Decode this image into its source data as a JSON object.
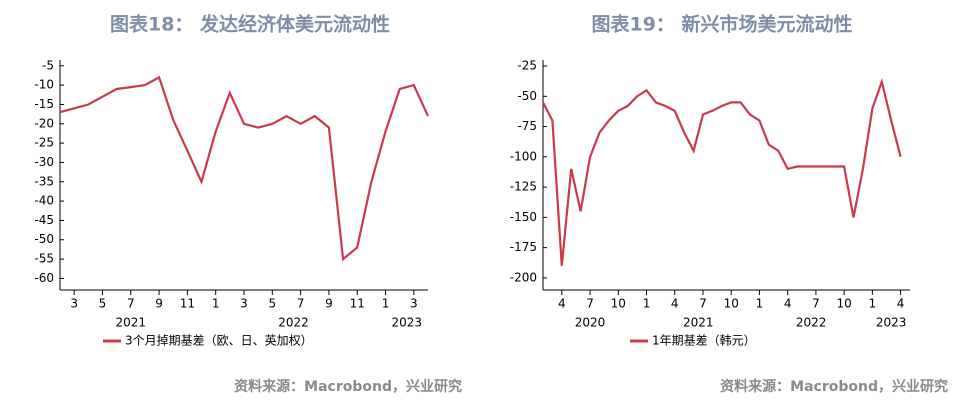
{
  "chart_data": [
    {
      "type": "line",
      "title": "图表18： 发达经济体美元流动性",
      "x": [
        "2021-02",
        "2021-03",
        "2021-04",
        "2021-05",
        "2021-06",
        "2021-07",
        "2021-08",
        "2021-09",
        "2021-10",
        "2021-11",
        "2021-12",
        "2022-01",
        "2022-02",
        "2022-03",
        "2022-04",
        "2022-05",
        "2022-06",
        "2022-07",
        "2022-08",
        "2022-09",
        "2022-10",
        "2022-11",
        "2022-12",
        "2023-01",
        "2023-02",
        "2023-03",
        "2023-04"
      ],
      "series": [
        {
          "name": "3个月掉期基差（欧、日、英加权）",
          "color": "#c93a4b",
          "values": [
            -17,
            -16,
            -15,
            -13,
            -11,
            -10.5,
            -10,
            -8,
            -19,
            -27,
            -35,
            -22,
            -12,
            -20,
            -21,
            -20,
            -18,
            -20,
            -18,
            -21,
            -55,
            -52,
            -35,
            -22,
            -11,
            -10,
            -18
          ]
        }
      ],
      "xlim": [
        "2021-02",
        "2023-04"
      ],
      "xticks": [
        {
          "value": "2021-03",
          "label": "3"
        },
        {
          "value": "2021-05",
          "label": "5"
        },
        {
          "value": "2021-07",
          "label": "7"
        },
        {
          "value": "2021-09",
          "label": "9"
        },
        {
          "value": "2021-11",
          "label": "11"
        },
        {
          "value": "2022-01",
          "label": "1"
        },
        {
          "value": "2022-03",
          "label": "3"
        },
        {
          "value": "2022-05",
          "label": "5"
        },
        {
          "value": "2022-07",
          "label": "7"
        },
        {
          "value": "2022-09",
          "label": "9"
        },
        {
          "value": "2022-11",
          "label": "11"
        },
        {
          "value": "2023-01",
          "label": "1"
        },
        {
          "value": "2023-03",
          "label": "3"
        }
      ],
      "year_labels": [
        "2021",
        "2022",
        "2023"
      ],
      "ylim": [
        -63,
        -3.5
      ],
      "yticks": [
        -5,
        -10,
        -15,
        -20,
        -25,
        -30,
        -35,
        -40,
        -45,
        -50,
        -55,
        -60
      ],
      "grid": false,
      "source": "资料来源：Macrobond，兴业研究"
    },
    {
      "type": "line",
      "title": "图表19： 新兴市场美元流动性",
      "x": [
        "2020-02",
        "2020-03",
        "2020-04",
        "2020-05",
        "2020-06",
        "2020-07",
        "2020-08",
        "2020-09",
        "2020-10",
        "2020-11",
        "2020-12",
        "2021-01",
        "2021-02",
        "2021-03",
        "2021-04",
        "2021-05",
        "2021-06",
        "2021-07",
        "2021-08",
        "2021-09",
        "2021-10",
        "2021-11",
        "2021-12",
        "2022-01",
        "2022-02",
        "2022-03",
        "2022-04",
        "2022-05",
        "2022-06",
        "2022-07",
        "2022-08",
        "2022-09",
        "2022-10",
        "2022-11",
        "2022-12",
        "2023-01",
        "2023-02",
        "2023-03",
        "2023-04"
      ],
      "series": [
        {
          "name": "1年期基差（韩元）",
          "color": "#c93a4b",
          "values": [
            -55,
            -70,
            -190,
            -110,
            -145,
            -100,
            -80,
            -70,
            -62,
            -58,
            -50,
            -45,
            -55,
            -58,
            -62,
            -80,
            -95,
            -65,
            -62,
            -58,
            -55,
            -55,
            -65,
            -70,
            -90,
            -95,
            -110,
            -108,
            -108,
            -108,
            -108,
            -108,
            -108,
            -150,
            -110,
            -60,
            -38,
            -70,
            -100
          ]
        }
      ],
      "xlim": [
        "2020-02",
        "2023-05"
      ],
      "xticks": [
        {
          "value": "2020-04",
          "label": "4"
        },
        {
          "value": "2020-07",
          "label": "7"
        },
        {
          "value": "2020-10",
          "label": "10"
        },
        {
          "value": "2021-01",
          "label": "1"
        },
        {
          "value": "2021-04",
          "label": "4"
        },
        {
          "value": "2021-07",
          "label": "7"
        },
        {
          "value": "2021-10",
          "label": "10"
        },
        {
          "value": "2022-01",
          "label": "1"
        },
        {
          "value": "2022-04",
          "label": "4"
        },
        {
          "value": "2022-07",
          "label": "7"
        },
        {
          "value": "2022-10",
          "label": "10"
        },
        {
          "value": "2023-01",
          "label": "1"
        },
        {
          "value": "2023-04",
          "label": "4"
        }
      ],
      "year_labels": [
        "2020",
        "2021",
        "2022",
        "2023"
      ],
      "ylim": [
        -210,
        -20
      ],
      "yticks": [
        -25,
        -50,
        -75,
        -100,
        -125,
        -150,
        -175,
        -200
      ],
      "grid": false,
      "source": "资料来源：Macrobond，兴业研究"
    }
  ]
}
